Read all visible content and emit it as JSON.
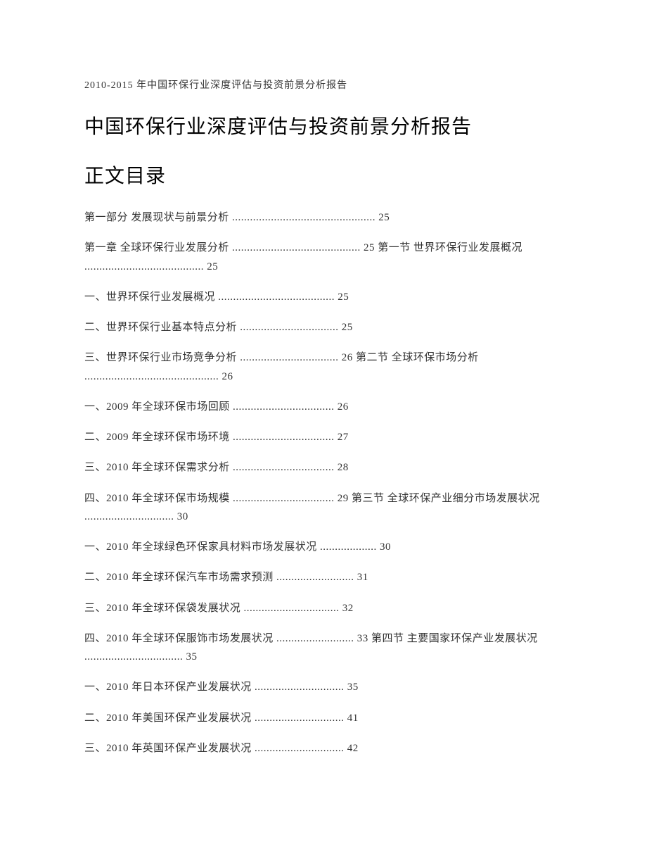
{
  "header": "2010-2015 年中国环保行业深度评估与投资前景分析报告",
  "title": "中国环保行业深度评估与投资前景分析报告",
  "subtitle": "正文目录",
  "toc": [
    "第一部分  发展现状与前景分析  ................................................ 25",
    "第一章  全球环保行业发展分析  ........................................... 25  第一节  世界环保行业发展概况  ........................................ 25",
    "一、世界环保行业发展概况  ....................................... 25",
    "二、世界环保行业基本特点分析  ................................. 25",
    "三、世界环保行业市场竞争分析  ................................. 26  第二节  全球环保市场分析  ............................................. 26",
    "一、2009 年全球环保市场回顾  .................................. 26",
    "二、2009 年全球环保市场环境  .................................. 27",
    "三、2010 年全球环保需求分析  .................................. 28",
    "四、2010 年全球环保市场规模  .................................. 29  第三节  全球环保产业细分市场发展状况  .............................. 30",
    "一、2010 年全球绿色环保家具材料市场发展状况  ................... 30",
    "二、2010 年全球环保汽车市场需求预测  .......................... 31",
    "三、2010 年全球环保袋发展状况  ................................ 32",
    "四、2010 年全球环保服饰市场发展状况  .......................... 33  第四节  主要国家环保产业发展状况  ................................. 35",
    "一、2010 年日本环保产业发展状况  .............................. 35",
    "二、2010 年美国环保产业发展状况  .............................. 41",
    "三、2010 年英国环保产业发展状况  .............................. 42"
  ]
}
